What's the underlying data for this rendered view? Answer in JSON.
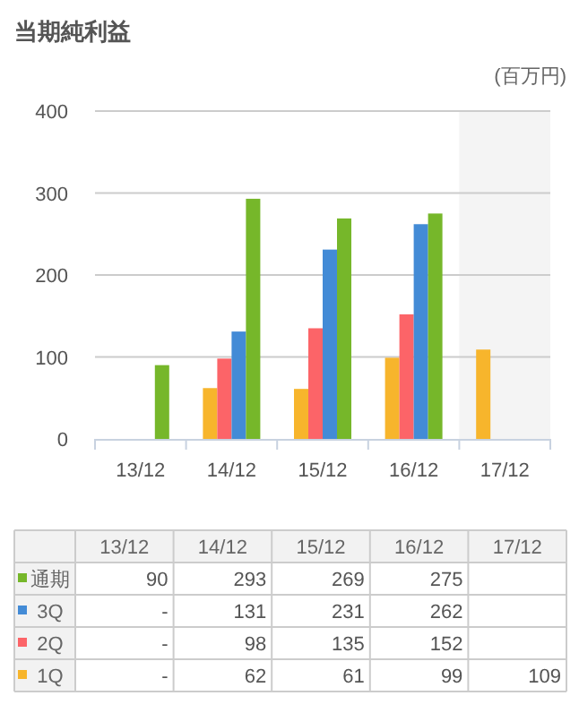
{
  "chart_data": {
    "type": "bar",
    "title": "当期純利益",
    "ylabel": "(百万円)",
    "categories": [
      "13/12",
      "14/12",
      "15/12",
      "16/12",
      "17/12"
    ],
    "series": [
      {
        "name": "1Q",
        "color": "#f7b52c",
        "values": [
          null,
          62,
          61,
          99,
          109
        ],
        "value_labels": [
          "-",
          "62",
          "61",
          "99",
          "109"
        ]
      },
      {
        "name": "2Q",
        "color": "#fc6468",
        "values": [
          null,
          98,
          135,
          152,
          null
        ],
        "value_labels": [
          "-",
          "98",
          "135",
          "152",
          null
        ]
      },
      {
        "name": "3Q",
        "color": "#438bd6",
        "values": [
          null,
          131,
          231,
          262,
          null
        ],
        "value_labels": [
          "-",
          "131",
          "231",
          "262",
          null
        ]
      },
      {
        "name": "通期",
        "color": "#76b72a",
        "values": [
          90,
          293,
          269,
          275,
          null
        ],
        "value_labels": [
          "90",
          "293",
          "269",
          "275",
          null
        ]
      }
    ],
    "legend": "bottom",
    "ylim": [
      0,
      400
    ],
    "yticks": [
      0,
      100,
      200,
      300,
      400
    ],
    "grid": "y",
    "bands": [
      {
        "axis": "x",
        "from": "17/12",
        "to": "17/12",
        "color": "#f4f4f4"
      }
    ]
  }
}
